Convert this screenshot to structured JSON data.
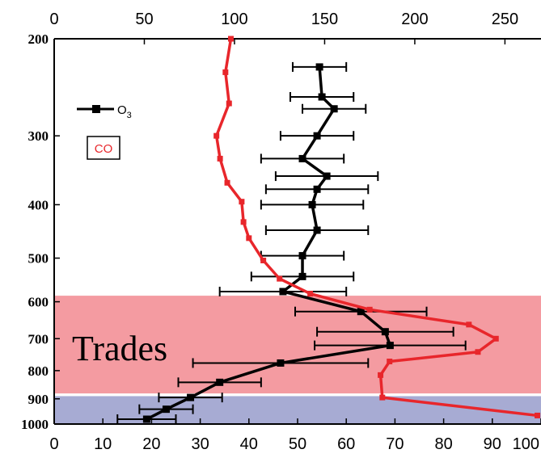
{
  "chart_data": {
    "type": "line",
    "title": "",
    "xlabel": "",
    "ylabel": "",
    "top_axis": {
      "range": [
        0,
        270
      ],
      "ticks": [
        "0",
        "50",
        "100",
        "150",
        "200",
        "250"
      ],
      "tick_values": [
        0,
        50,
        100,
        150,
        200,
        250
      ]
    },
    "bottom_axis": {
      "range": [
        0,
        100
      ],
      "ticks": [
        "0",
        "10",
        "20",
        "30",
        "40",
        "50",
        "60",
        "70",
        "80",
        "90",
        "100"
      ],
      "tick_values": [
        0,
        10,
        20,
        30,
        40,
        50,
        60,
        70,
        80,
        90,
        100
      ]
    },
    "left_axis": {
      "range": [
        200,
        1000
      ],
      "inverted": true,
      "scale": "log",
      "ticks": [
        "200",
        "300",
        "400",
        "500",
        "600",
        "700",
        "800",
        "900",
        "1000"
      ],
      "tick_values": [
        200,
        300,
        400,
        500,
        600,
        700,
        800,
        900,
        1000
      ]
    },
    "grid": false,
    "legend": {
      "placement": "top-left",
      "entries": [
        {
          "name": "O3",
          "label_main": "O",
          "label_sub": "3",
          "color": "#000000",
          "marker": "square"
        },
        {
          "name": "CO",
          "label_main": "CO",
          "color": "#e8262b",
          "marker": "none"
        }
      ]
    },
    "regions": [
      {
        "label": "Trades",
        "p_from": 585,
        "p_to": 880,
        "color": "#f07a82"
      },
      {
        "label": "",
        "p_from": 890,
        "p_to": 1000,
        "color": "#8a8fc4"
      }
    ],
    "series": [
      {
        "name": "O3",
        "axis": "bottom",
        "color": "#000000",
        "points": [
          {
            "p": 225,
            "x": 54.5,
            "err": 5.5
          },
          {
            "p": 255,
            "x": 55.0,
            "err": 6.5
          },
          {
            "p": 268,
            "x": 57.5,
            "err": 6.5
          },
          {
            "p": 300,
            "x": 54.0,
            "err": 7.5
          },
          {
            "p": 330,
            "x": 51.0,
            "err": 8.5
          },
          {
            "p": 355,
            "x": 56.0,
            "err": 10.5
          },
          {
            "p": 375,
            "x": 54.0,
            "err": 10.5
          },
          {
            "p": 400,
            "x": 53.0,
            "err": 10.5
          },
          {
            "p": 445,
            "x": 54.0,
            "err": 10.5
          },
          {
            "p": 495,
            "x": 51.0,
            "err": 8.5
          },
          {
            "p": 540,
            "x": 51.0,
            "err": 10.5
          },
          {
            "p": 575,
            "x": 47.0,
            "err": 13.0
          },
          {
            "p": 625,
            "x": 63.0,
            "err": 13.5
          },
          {
            "p": 680,
            "x": 68.0,
            "err": 14.0
          },
          {
            "p": 720,
            "x": 69.0,
            "err": 15.5
          },
          {
            "p": 775,
            "x": 46.5,
            "err": 18.0
          },
          {
            "p": 840,
            "x": 34.0,
            "err": 8.5
          },
          {
            "p": 895,
            "x": 28.0,
            "err": 6.5
          },
          {
            "p": 940,
            "x": 23.0,
            "err": 5.5
          },
          {
            "p": 980,
            "x": 19.0,
            "err": 6.0
          }
        ]
      },
      {
        "name": "CO",
        "axis": "top",
        "color": "#e8262b",
        "points": [
          {
            "p": 200,
            "x": 98
          },
          {
            "p": 230,
            "x": 95
          },
          {
            "p": 262,
            "x": 97
          },
          {
            "p": 300,
            "x": 90
          },
          {
            "p": 330,
            "x": 92
          },
          {
            "p": 365,
            "x": 96
          },
          {
            "p": 395,
            "x": 104
          },
          {
            "p": 430,
            "x": 105
          },
          {
            "p": 460,
            "x": 108
          },
          {
            "p": 505,
            "x": 116
          },
          {
            "p": 545,
            "x": 125
          },
          {
            "p": 580,
            "x": 142
          },
          {
            "p": 620,
            "x": 175
          },
          {
            "p": 660,
            "x": 230
          },
          {
            "p": 700,
            "x": 245
          },
          {
            "p": 740,
            "x": 235
          },
          {
            "p": 770,
            "x": 186
          },
          {
            "p": 815,
            "x": 181
          },
          {
            "p": 895,
            "x": 182
          },
          {
            "p": 965,
            "x": 268
          }
        ]
      }
    ]
  }
}
